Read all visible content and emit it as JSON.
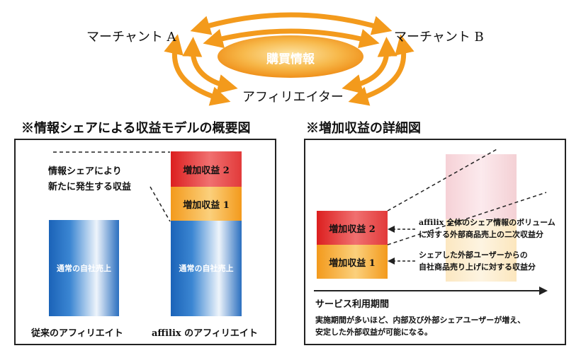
{
  "cycle": {
    "merchant_a": "マーチャント A",
    "merchant_b": "マーチャント B",
    "affiliator": "アフィリエイター",
    "center": "購買情報",
    "colors": {
      "arrow": "#f39a1c",
      "ellipse_center": "#f7c76a",
      "ellipse_edge": "#f08a10"
    }
  },
  "left": {
    "title": "※情報シェアによる収益モデルの概要図",
    "annotation_line1": "情報シェアにより",
    "annotation_line2": "新たに発生する収益",
    "bar_label": "通常の自社売上",
    "block_red": "増加収益 2",
    "block_orange": "増加収益 1",
    "caption_left": "従来のアフィリエイト",
    "caption_right": "affilix のアフィリエイト"
  },
  "right": {
    "title": "※増加収益の詳細図",
    "block_red": "増加収益 2",
    "block_orange": "増加収益 1",
    "note1_line1": "affilix 全体のシェア情報のボリューム",
    "note1_line2": "に対する外部商品売上の二次収益分",
    "note2_line1": "シェアした外部ユーザーからの",
    "note2_line2": "自社商品売り上げに対する収益分",
    "axis_label": "サービス利用期間",
    "desc_line1": "実施期間が多いほど、内部及び外部シェアユーザーが増え、",
    "desc_line2": "安定した外部収益が可能になる。"
  }
}
